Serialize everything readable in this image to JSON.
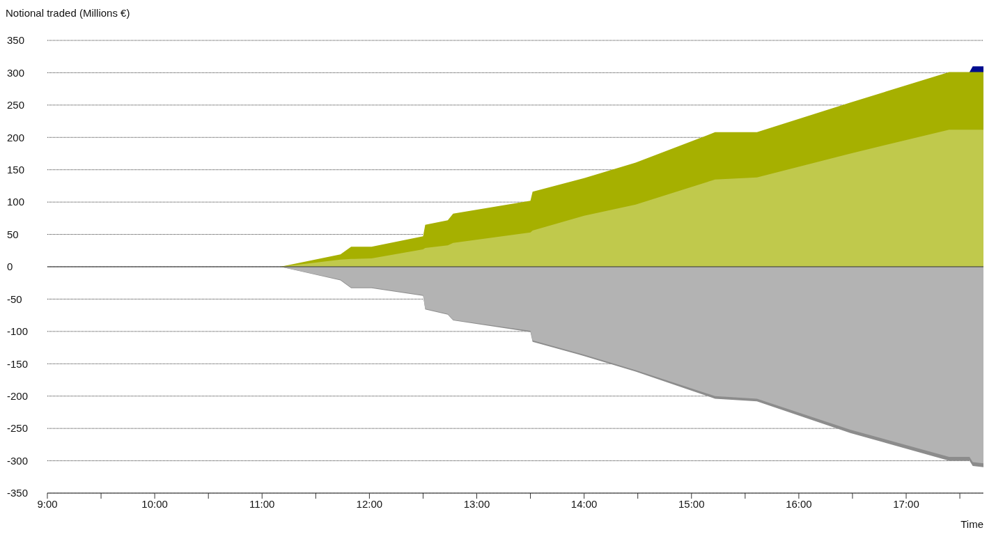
{
  "chart_data": {
    "type": "area",
    "ylabel": "Notional traded (Millions €)",
    "xlabel": "Time",
    "grid": "y",
    "legend": false,
    "x": [
      9,
      11.17,
      11.73,
      11.83,
      12.02,
      12.5,
      12.52,
      12.73,
      12.78,
      13.5,
      13.52,
      14.0,
      14.48,
      15.22,
      15.61,
      16.48,
      17.4,
      17.59,
      17.62,
      17.72
    ],
    "series": [
      {
        "color": "#000c8f",
        "values": [
          null,
          null,
          null,
          null,
          null,
          null,
          null,
          null,
          null,
          null,
          null,
          null,
          null,
          null,
          null,
          null,
          null,
          301,
          310,
          310
        ]
      },
      {
        "color": "#a6b000",
        "values": [
          0,
          0,
          19,
          31,
          31,
          47,
          65,
          72,
          82,
          102,
          116,
          137,
          161,
          208,
          208,
          254,
          301,
          301,
          301,
          301
        ]
      },
      {
        "color": "#c0c94c",
        "values": [
          0,
          0,
          11,
          12,
          13,
          27,
          29,
          33,
          37,
          53,
          56,
          79,
          96,
          135,
          138,
          175,
          212,
          212,
          212,
          212
        ]
      },
      {
        "color": "#8c8c8c",
        "values": [
          0,
          0,
          -21,
          -33,
          -33,
          -45,
          -66,
          -74,
          -83,
          -101,
          -116,
          -138,
          -162,
          -204,
          -208,
          -257,
          -300,
          -300,
          -308,
          -310
        ]
      },
      {
        "color": "#b3b3b3",
        "values": [
          0,
          0,
          -20,
          -32,
          -32,
          -44,
          -65,
          -73,
          -82,
          -99,
          -114,
          -136,
          -160,
          -200,
          -204,
          -252,
          -294,
          -294,
          -302,
          -304
        ]
      }
    ],
    "xlim": [
      9,
      17.72
    ],
    "xticks": [
      {
        "value": 9,
        "label": "9:00"
      },
      {
        "value": 9.5,
        "label": null
      },
      {
        "value": 10,
        "label": "10:00"
      },
      {
        "value": 10.5,
        "label": null
      },
      {
        "value": 11,
        "label": "11:00"
      },
      {
        "value": 11.5,
        "label": null
      },
      {
        "value": 12,
        "label": "12:00"
      },
      {
        "value": 12.5,
        "label": null
      },
      {
        "value": 13,
        "label": "13:00"
      },
      {
        "value": 13.5,
        "label": null
      },
      {
        "value": 14,
        "label": "14:00"
      },
      {
        "value": 14.5,
        "label": null
      },
      {
        "value": 15,
        "label": "15:00"
      },
      {
        "value": 15.5,
        "label": null
      },
      {
        "value": 16,
        "label": "16:00"
      },
      {
        "value": 16.5,
        "label": null
      },
      {
        "value": 17,
        "label": "17:00"
      },
      {
        "value": 17.5,
        "label": null
      }
    ],
    "ylim": [
      -350,
      350
    ],
    "yticks": [
      -350,
      -300,
      -250,
      -200,
      -150,
      -100,
      -50,
      0,
      50,
      100,
      150,
      200,
      250,
      300,
      350
    ],
    "ref_lines": [
      {
        "axis": "y",
        "value": 0,
        "color": "#333333"
      }
    ]
  }
}
